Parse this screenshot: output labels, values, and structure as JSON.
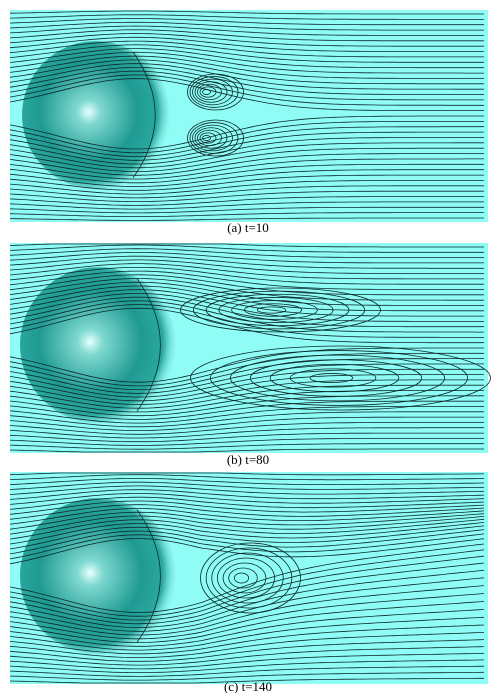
{
  "figure": {
    "panels": [
      {
        "caption": "(a) t=10"
      },
      {
        "caption": "(b) t=80"
      },
      {
        "caption": "(c) t=140"
      }
    ]
  }
}
